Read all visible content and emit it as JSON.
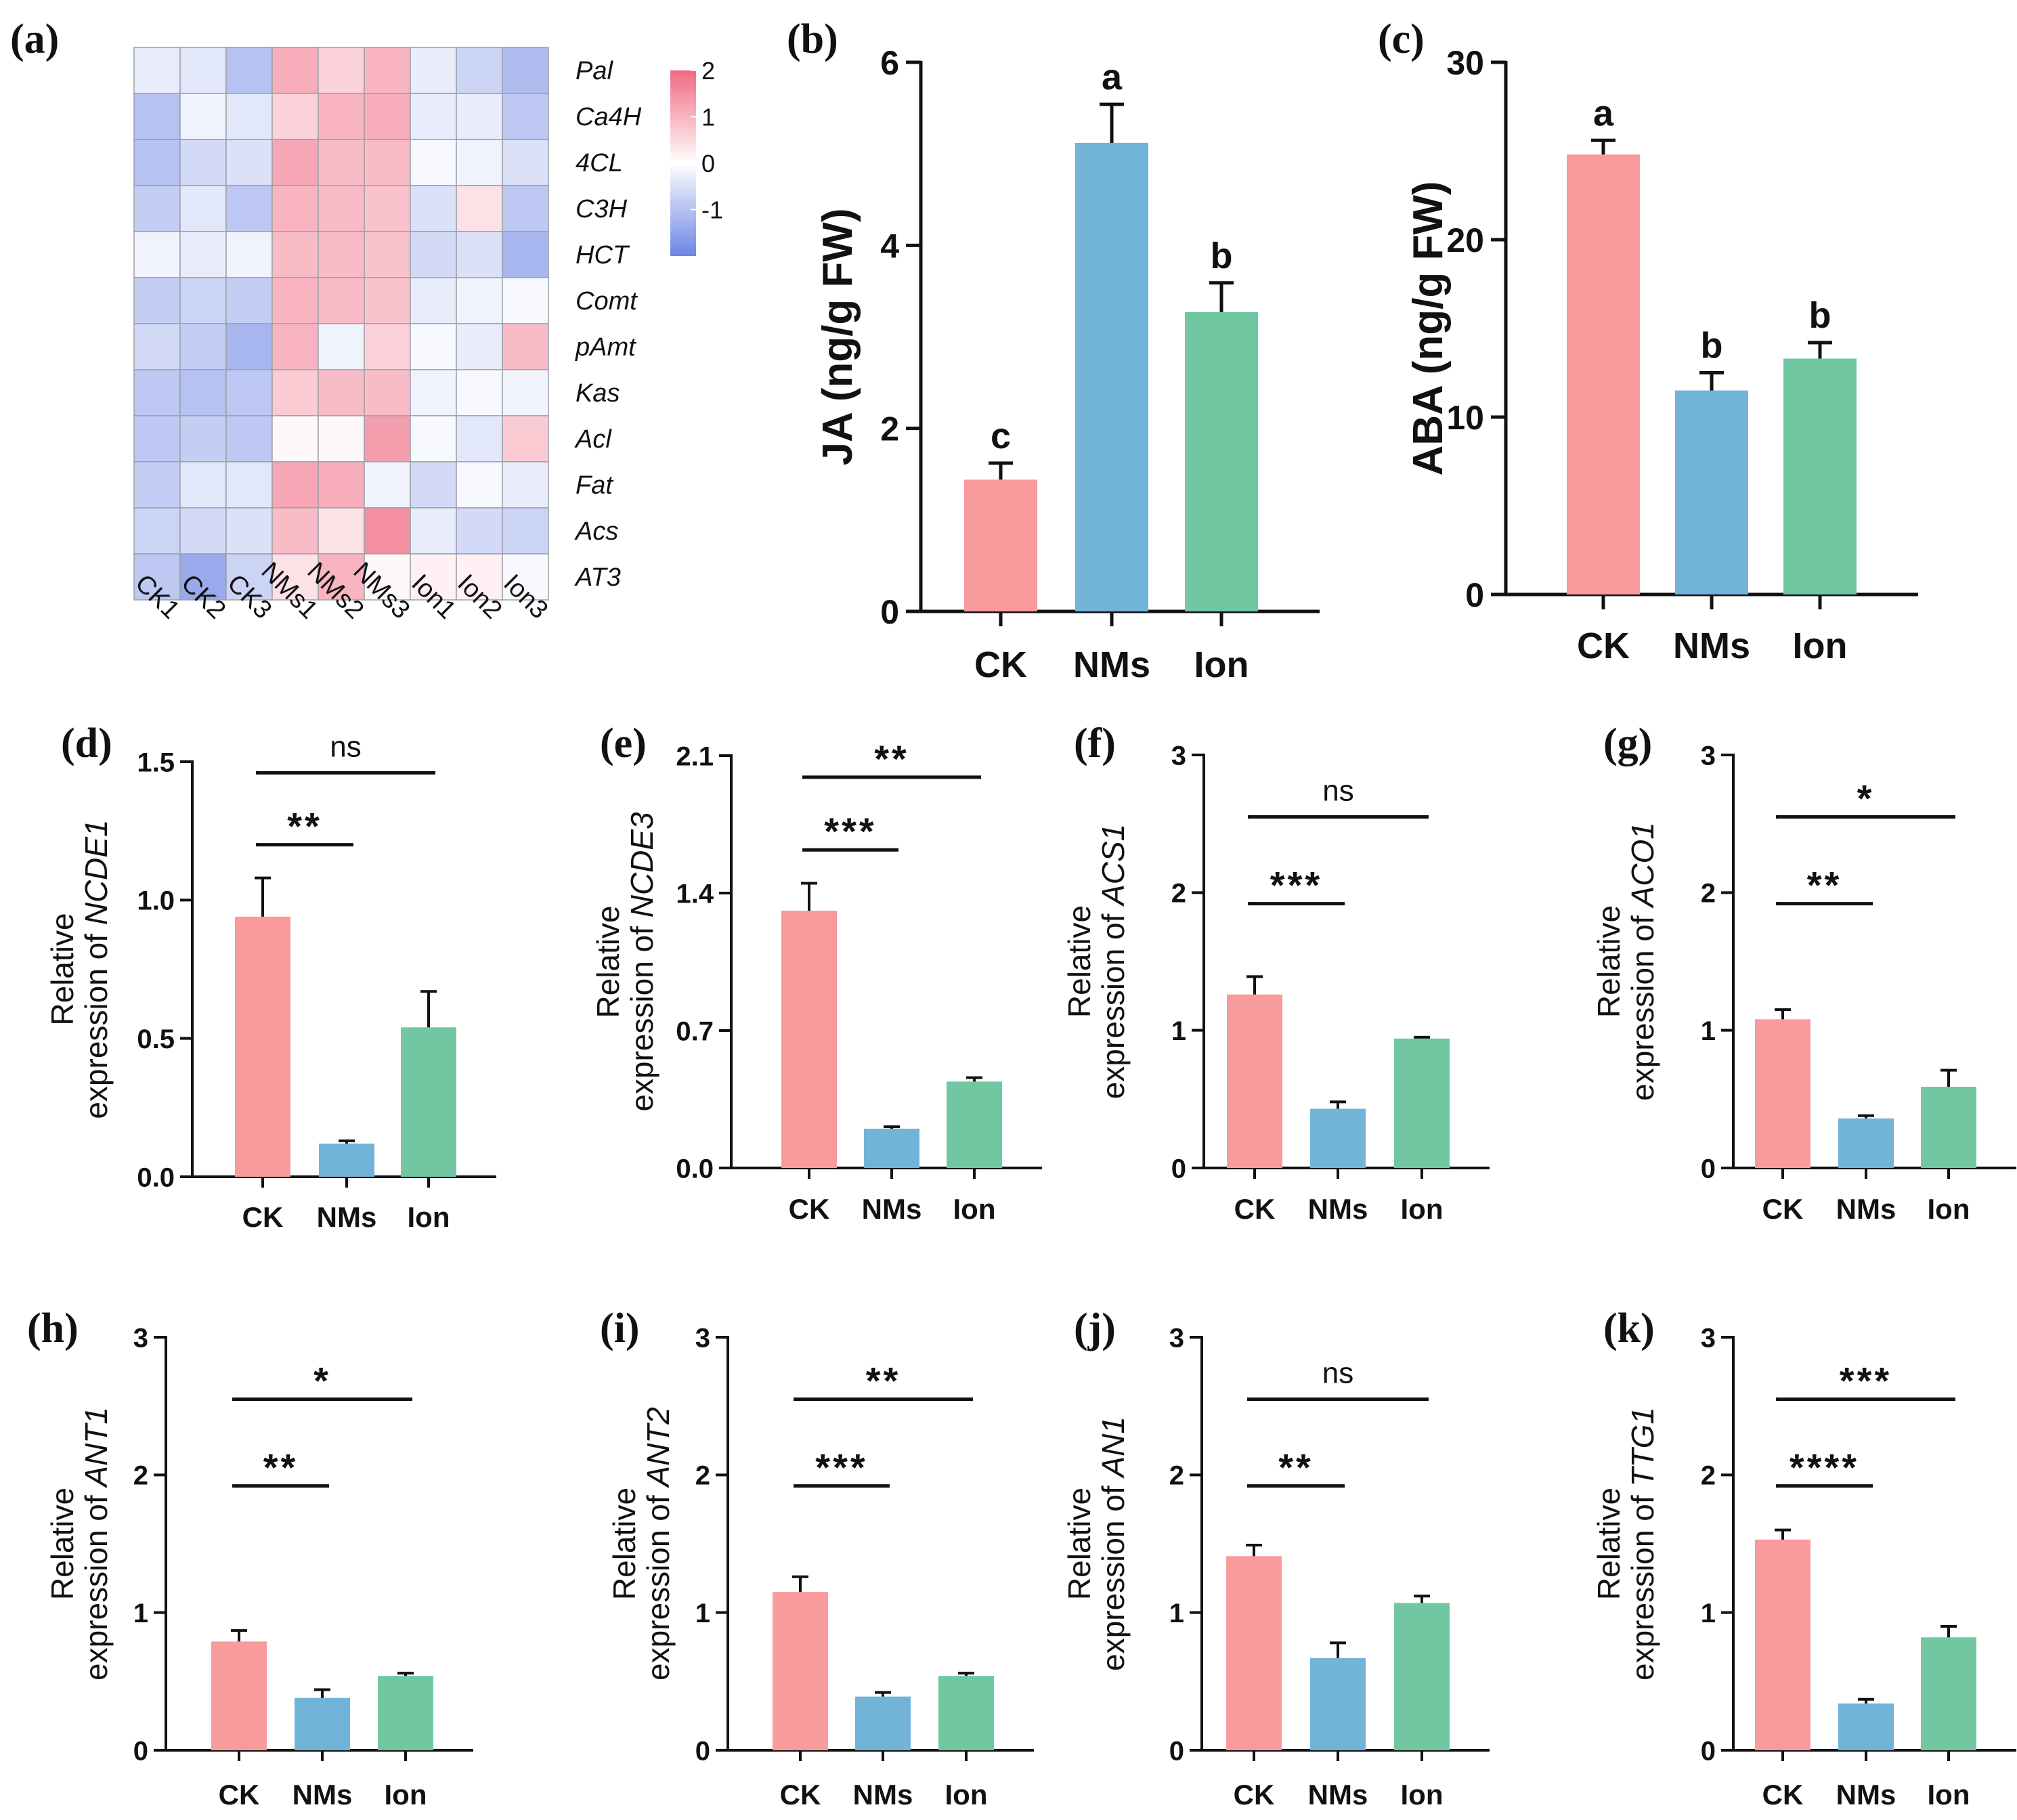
{
  "colors": {
    "CK": "#F99A9D",
    "NMs": "#72B3D8",
    "Ion": "#70C7A2",
    "heat_low": "#6C85E4",
    "heat_mid": "#FFFFFF",
    "heat_high": "#F06A82"
  },
  "chart_data": [
    {
      "id": "a",
      "panel_label": "(a)",
      "type": "heatmap",
      "rows": [
        "Pal",
        "Ca4H",
        "4CL",
        "C3H",
        "HCT",
        "Comt",
        "pAmt",
        "Kas",
        "Acl",
        "Fat",
        "Acs",
        "AT3"
      ],
      "columns": [
        "CK1",
        "CK2",
        "CK3",
        "NMs1",
        "NMs2",
        "NMs3",
        "Ion1",
        "Ion2",
        "Ion3"
      ],
      "values": [
        [
          -0.3,
          -0.4,
          -1.0,
          1.1,
          0.6,
          1.0,
          -0.3,
          -0.7,
          -1.1
        ],
        [
          -1.0,
          -0.2,
          -0.4,
          0.6,
          1.0,
          1.1,
          -0.3,
          -0.3,
          -0.9
        ],
        [
          -1.0,
          -0.6,
          -0.5,
          1.2,
          0.9,
          0.9,
          -0.1,
          -0.2,
          -0.5
        ],
        [
          -0.8,
          -0.4,
          -0.9,
          1.0,
          0.9,
          0.8,
          -0.5,
          0.4,
          -0.9
        ],
        [
          -0.2,
          -0.3,
          -0.2,
          0.9,
          0.9,
          0.8,
          -0.6,
          -0.5,
          -1.2
        ],
        [
          -0.8,
          -0.7,
          -0.8,
          1.0,
          0.9,
          0.8,
          -0.3,
          -0.2,
          -0.1
        ],
        [
          -0.6,
          -0.8,
          -1.2,
          1.0,
          -0.2,
          0.6,
          -0.1,
          -0.3,
          0.9
        ],
        [
          -0.9,
          -1.0,
          -0.9,
          0.7,
          0.9,
          0.9,
          -0.2,
          -0.1,
          -0.2
        ],
        [
          -0.9,
          -0.8,
          -0.9,
          0.1,
          0.1,
          1.3,
          -0.1,
          -0.4,
          0.7
        ],
        [
          -0.8,
          -0.4,
          -0.4,
          1.2,
          1.1,
          -0.2,
          -0.6,
          -0.1,
          -0.3
        ],
        [
          -0.7,
          -0.6,
          -0.5,
          0.9,
          0.4,
          1.5,
          -0.3,
          -0.6,
          -0.7
        ],
        [
          -0.9,
          -1.4,
          -0.7,
          0.4,
          1.0,
          0.1,
          0.2,
          0.2,
          -0.1
        ]
      ],
      "colorbar": {
        "ticks": [
          "2",
          "1",
          "0",
          "-1"
        ],
        "range": [
          -2,
          2
        ]
      }
    },
    {
      "id": "b",
      "panel_label": "(b)",
      "type": "bar",
      "categories": [
        "CK",
        "NMs",
        "Ion"
      ],
      "values": [
        1.44,
        5.12,
        3.27
      ],
      "errors": [
        0.18,
        0.42,
        0.32
      ],
      "letters": [
        "c",
        "a",
        "b"
      ],
      "ylabel": "JA (ng/g FW)",
      "gene": "",
      "ylim": [
        0,
        6
      ],
      "yticks": [
        {
          "v": 0,
          "t": "0"
        },
        {
          "v": 2,
          "t": "2"
        },
        {
          "v": 4,
          "t": "4"
        },
        {
          "v": 6,
          "t": "6"
        }
      ],
      "brackets": []
    },
    {
      "id": "c",
      "panel_label": "(c)",
      "type": "bar",
      "categories": [
        "CK",
        "NMs",
        "Ion"
      ],
      "values": [
        24.8,
        11.5,
        13.3
      ],
      "errors": [
        0.8,
        1.0,
        0.9
      ],
      "letters": [
        "a",
        "b",
        "b"
      ],
      "ylabel": "ABA (ng/g FW)",
      "gene": "",
      "ylim": [
        0,
        30
      ],
      "yticks": [
        {
          "v": 0,
          "t": "0"
        },
        {
          "v": 10,
          "t": "10"
        },
        {
          "v": 20,
          "t": "20"
        },
        {
          "v": 30,
          "t": "30"
        }
      ],
      "brackets": []
    },
    {
      "id": "d",
      "panel_label": "(d)",
      "type": "bar",
      "categories": [
        "CK",
        "NMs",
        "Ion"
      ],
      "values": [
        0.94,
        0.12,
        0.54
      ],
      "errors": [
        0.14,
        0.01,
        0.13
      ],
      "ylabel_top": "Relative",
      "ylabel_prefix": "expression of ",
      "gene": "NCDE1",
      "ylim": [
        0,
        1.5
      ],
      "yticks": [
        {
          "v": 0,
          "t": "0.0"
        },
        {
          "v": 0.5,
          "t": "0.5"
        },
        {
          "v": 1,
          "t": "1.0"
        },
        {
          "v": 1.5,
          "t": "1.5"
        }
      ],
      "brackets": [
        {
          "from": 0,
          "to": 1,
          "text": "**",
          "y": 1.2
        },
        {
          "from": 0,
          "to": 2,
          "text": "ns",
          "y": 1.46
        }
      ]
    },
    {
      "id": "e",
      "panel_label": "(e)",
      "type": "bar",
      "categories": [
        "CK",
        "NMs",
        "Ion"
      ],
      "values": [
        1.31,
        0.2,
        0.44
      ],
      "errors": [
        0.14,
        0.01,
        0.02
      ],
      "ylabel_top": "Relative",
      "ylabel_prefix": "expression of ",
      "gene": "NCDE3",
      "ylim": [
        0,
        2.1
      ],
      "yticks": [
        {
          "v": 0,
          "t": "0.0"
        },
        {
          "v": 0.7,
          "t": "0.7"
        },
        {
          "v": 1.4,
          "t": "1.4"
        },
        {
          "v": 2.1,
          "t": "2.1"
        }
      ],
      "brackets": [
        {
          "from": 0,
          "to": 1,
          "text": "***",
          "y": 1.62
        },
        {
          "from": 0,
          "to": 2,
          "text": "**",
          "y": 1.99
        }
      ]
    },
    {
      "id": "f",
      "panel_label": "(f)",
      "type": "bar",
      "categories": [
        "CK",
        "NMs",
        "Ion"
      ],
      "values": [
        1.26,
        0.43,
        0.94
      ],
      "errors": [
        0.13,
        0.05,
        0.01
      ],
      "ylabel_top": "Relative",
      "ylabel_prefix": "expression of ",
      "gene": "ACS1",
      "ylim": [
        0,
        3
      ],
      "yticks": [
        {
          "v": 0,
          "t": "0"
        },
        {
          "v": 1,
          "t": "1"
        },
        {
          "v": 2,
          "t": "2"
        },
        {
          "v": 3,
          "t": "3"
        }
      ],
      "brackets": [
        {
          "from": 0,
          "to": 1,
          "text": "***",
          "y": 1.92
        },
        {
          "from": 0,
          "to": 2,
          "text": "ns",
          "y": 2.55
        }
      ]
    },
    {
      "id": "g",
      "panel_label": "(g)",
      "type": "bar",
      "categories": [
        "CK",
        "NMs",
        "Ion"
      ],
      "values": [
        1.08,
        0.36,
        0.59
      ],
      "errors": [
        0.07,
        0.02,
        0.12
      ],
      "ylabel_top": "Relative",
      "ylabel_prefix": "expression of ",
      "gene": "ACO1",
      "ylim": [
        0,
        3
      ],
      "yticks": [
        {
          "v": 0,
          "t": "0"
        },
        {
          "v": 1,
          "t": "1"
        },
        {
          "v": 2,
          "t": "2"
        },
        {
          "v": 3,
          "t": "3"
        }
      ],
      "brackets": [
        {
          "from": 0,
          "to": 1,
          "text": "**",
          "y": 1.92
        },
        {
          "from": 0,
          "to": 2,
          "text": "*",
          "y": 2.55
        }
      ]
    },
    {
      "id": "h",
      "panel_label": "(h)",
      "type": "bar",
      "categories": [
        "CK",
        "NMs",
        "Ion"
      ],
      "values": [
        0.79,
        0.38,
        0.54
      ],
      "errors": [
        0.08,
        0.06,
        0.02
      ],
      "ylabel_top": "Relative",
      "ylabel_prefix": "expression of ",
      "gene": "ANT1",
      "ylim": [
        0,
        3
      ],
      "yticks": [
        {
          "v": 0,
          "t": "0"
        },
        {
          "v": 1,
          "t": "1"
        },
        {
          "v": 2,
          "t": "2"
        },
        {
          "v": 3,
          "t": "3"
        }
      ],
      "brackets": [
        {
          "from": 0,
          "to": 1,
          "text": "**",
          "y": 1.92
        },
        {
          "from": 0,
          "to": 2,
          "text": "*",
          "y": 2.55
        }
      ]
    },
    {
      "id": "i",
      "panel_label": "(i)",
      "type": "bar",
      "categories": [
        "CK",
        "NMs",
        "Ion"
      ],
      "values": [
        1.15,
        0.39,
        0.54
      ],
      "errors": [
        0.11,
        0.03,
        0.02
      ],
      "ylabel_top": "Relative",
      "ylabel_prefix": "expression of ",
      "gene": "ANT2",
      "ylim": [
        0,
        3
      ],
      "yticks": [
        {
          "v": 0,
          "t": "0"
        },
        {
          "v": 1,
          "t": "1"
        },
        {
          "v": 2,
          "t": "2"
        },
        {
          "v": 3,
          "t": "3"
        }
      ],
      "brackets": [
        {
          "from": 0,
          "to": 1,
          "text": "***",
          "y": 1.92
        },
        {
          "from": 0,
          "to": 2,
          "text": "**",
          "y": 2.55
        }
      ]
    },
    {
      "id": "j",
      "panel_label": "(j)",
      "type": "bar",
      "categories": [
        "CK",
        "NMs",
        "Ion"
      ],
      "values": [
        1.41,
        0.67,
        1.07
      ],
      "errors": [
        0.08,
        0.11,
        0.05
      ],
      "ylabel_top": "Relative",
      "ylabel_prefix": "expression of ",
      "gene": "AN1",
      "ylim": [
        0,
        3
      ],
      "yticks": [
        {
          "v": 0,
          "t": "0"
        },
        {
          "v": 1,
          "t": "1"
        },
        {
          "v": 2,
          "t": "2"
        },
        {
          "v": 3,
          "t": "3"
        }
      ],
      "brackets": [
        {
          "from": 0,
          "to": 1,
          "text": "**",
          "y": 1.92
        },
        {
          "from": 0,
          "to": 2,
          "text": "ns",
          "y": 2.55
        }
      ]
    },
    {
      "id": "k",
      "panel_label": "(k)",
      "type": "bar",
      "categories": [
        "CK",
        "NMs",
        "Ion"
      ],
      "values": [
        1.53,
        0.34,
        0.82
      ],
      "errors": [
        0.07,
        0.03,
        0.08
      ],
      "ylabel_top": "Relative",
      "ylabel_prefix": "expression of ",
      "gene": "TTG1",
      "ylim": [
        0,
        3
      ],
      "yticks": [
        {
          "v": 0,
          "t": "0"
        },
        {
          "v": 1,
          "t": "1"
        },
        {
          "v": 2,
          "t": "2"
        },
        {
          "v": 3,
          "t": "3"
        }
      ],
      "brackets": [
        {
          "from": 0,
          "to": 1,
          "text": "****",
          "y": 1.92
        },
        {
          "from": 0,
          "to": 2,
          "text": "***",
          "y": 2.55
        }
      ]
    }
  ]
}
